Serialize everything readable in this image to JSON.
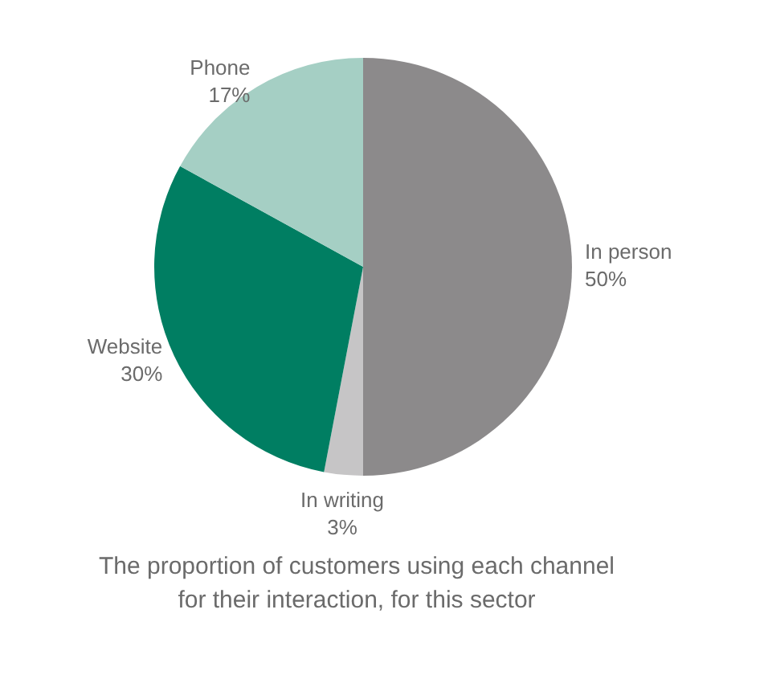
{
  "chart_data": {
    "type": "pie",
    "title": "The proportion of customers using each channel for their interaction, for this sector",
    "categories": [
      "In person",
      "In writing",
      "Website",
      "Phone"
    ],
    "values": [
      50,
      3,
      30,
      17
    ],
    "colors": [
      "#8c8a8b",
      "#c6c5c6",
      "#007e62",
      "#a5cfc4"
    ],
    "value_labels": [
      "50%",
      "3%",
      "30%",
      "17%"
    ]
  }
}
